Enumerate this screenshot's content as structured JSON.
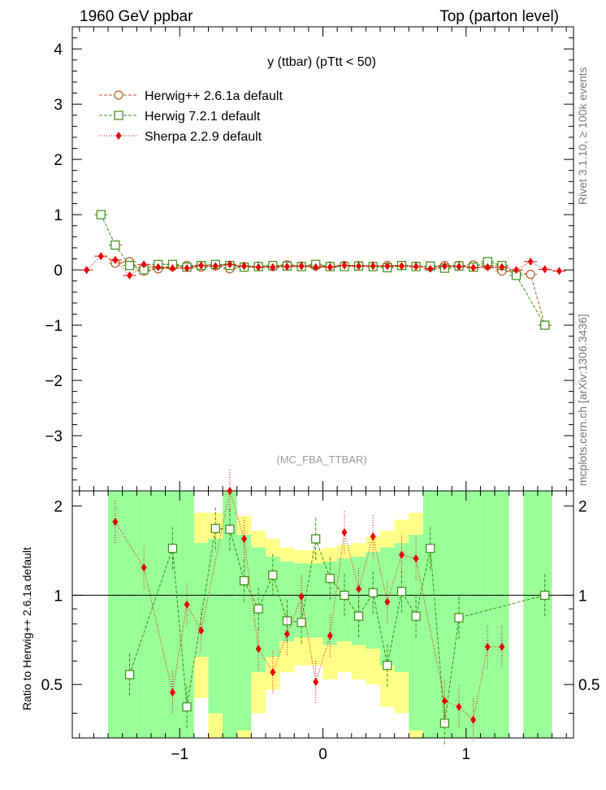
{
  "header": {
    "left": "1960 GeV ppbar",
    "right": "Top (parton level)"
  },
  "side_labels": {
    "rivet": "Rivet 3.1.10, ≥ 100k events",
    "mcplots": "mcplots.cern.ch [arXiv:1306.3436]"
  },
  "chart_data": [
    {
      "type": "line",
      "title": "y (ttbar) (pTtt < 50)",
      "watermark": "(MC_FBA_TTBAR)",
      "xlim": [
        -1.75,
        1.75
      ],
      "ylim": [
        -4.0,
        4.4
      ],
      "x_ticks": [
        -1,
        0,
        1
      ],
      "y_ticks": [
        -3,
        -2,
        -1,
        0,
        1,
        2,
        3,
        4
      ],
      "x_tick_labels": [
        "−1",
        "0",
        "1"
      ],
      "y_tick_labels": [
        "−3",
        "−2",
        "−1",
        "0",
        "1",
        "2",
        "3",
        "4"
      ],
      "legend": [
        {
          "name": "Herwig++ 2.6.1a default",
          "color": "#b45a1e",
          "marker": "circle",
          "dash": "4,2"
        },
        {
          "name": "Herwig 7.2.1 default",
          "color": "#3c8c14",
          "marker": "square",
          "dash": "4,2"
        },
        {
          "name": "Sherpa 2.2.9 default",
          "color": "#e60000",
          "marker": "diamond",
          "dash": "1,2"
        }
      ],
      "series": [
        {
          "name": "Herwig++ 2.6.1a default",
          "x": [
            -1.45,
            -1.35,
            -1.25,
            -1.15,
            -1.05,
            -0.95,
            -0.85,
            -0.75,
            -0.65,
            -0.55,
            -0.45,
            -0.35,
            -0.25,
            -0.15,
            -0.05,
            0.05,
            0.15,
            0.25,
            0.35,
            0.45,
            0.55,
            0.65,
            0.75,
            0.85,
            0.95,
            1.05,
            1.15,
            1.25,
            1.45,
            1.55
          ],
          "y": [
            0.12,
            0.15,
            -0.02,
            0.02,
            0.06,
            0.08,
            0.05,
            0.07,
            0.02,
            0.06,
            0.07,
            0.06,
            0.09,
            0.07,
            0.07,
            0.07,
            0.08,
            0.08,
            0.07,
            0.08,
            0.08,
            0.07,
            0.06,
            0.08,
            0.08,
            0.09,
            0.08,
            -0.02,
            -0.08,
            -1.0
          ]
        },
        {
          "name": "Herwig 7.2.1 default",
          "x": [
            -1.55,
            -1.45,
            -1.35,
            -1.25,
            -1.15,
            -1.05,
            -0.95,
            -0.85,
            -0.75,
            -0.65,
            -0.55,
            -0.45,
            -0.35,
            -0.25,
            -0.15,
            -0.05,
            0.05,
            0.15,
            0.25,
            0.35,
            0.45,
            0.55,
            0.65,
            0.75,
            0.85,
            0.95,
            1.05,
            1.15,
            1.25,
            1.35,
            1.55
          ],
          "y": [
            1.0,
            0.45,
            0.08,
            0.0,
            0.1,
            0.1,
            0.05,
            0.08,
            0.1,
            0.08,
            0.05,
            0.06,
            0.08,
            0.07,
            0.06,
            0.1,
            0.06,
            0.06,
            0.07,
            0.06,
            0.04,
            0.08,
            0.06,
            0.07,
            0.03,
            0.07,
            0.05,
            0.15,
            0.08,
            -0.1,
            -1.0
          ]
        },
        {
          "name": "Sherpa 2.2.9 default",
          "x": [
            -1.65,
            -1.55,
            -1.45,
            -1.35,
            -1.25,
            -1.15,
            -1.05,
            -0.95,
            -0.85,
            -0.75,
            -0.65,
            -0.55,
            -0.45,
            -0.35,
            -0.25,
            -0.15,
            -0.05,
            0.05,
            0.15,
            0.25,
            0.35,
            0.45,
            0.55,
            0.65,
            0.75,
            0.85,
            0.95,
            1.05,
            1.15,
            1.25,
            1.35,
            1.45,
            1.55,
            1.65
          ],
          "y": [
            0.0,
            0.25,
            0.18,
            -0.1,
            0.1,
            0.05,
            0.03,
            0.03,
            0.08,
            0.07,
            0.1,
            0.07,
            0.05,
            0.05,
            0.06,
            0.07,
            0.05,
            0.05,
            0.08,
            0.07,
            0.07,
            0.07,
            0.07,
            0.06,
            0.02,
            0.07,
            0.06,
            0.04,
            0.05,
            0.05,
            0.0,
            0.15,
            0.01,
            -0.02
          ]
        }
      ]
    },
    {
      "type": "line",
      "ylabel": "Ratio to Herwig++ 2.6.1a default",
      "xlim": [
        -1.75,
        1.75
      ],
      "ylim": [
        0.33,
        2.25
      ],
      "reference": 1.0,
      "x_ticks": [
        -1,
        0,
        1
      ],
      "x_tick_labels": [
        "−1",
        "0",
        "1"
      ],
      "y_ticks": [
        0.5,
        1,
        2
      ],
      "y_tick_labels": [
        "0.5",
        "1",
        "2"
      ],
      "bands": {
        "x_edges": [
          -1.5,
          -1.4,
          -1.3,
          -1.2,
          -1.1,
          -1.0,
          -0.9,
          -0.8,
          -0.7,
          -0.6,
          -0.5,
          -0.4,
          -0.3,
          -0.2,
          -0.1,
          0.0,
          0.1,
          0.2,
          0.3,
          0.4,
          0.5,
          0.6,
          0.7,
          0.8,
          0.9,
          1.0,
          1.1,
          1.2,
          1.3,
          1.4,
          1.5,
          1.6
        ],
        "green_low": [
          0.0,
          0.0,
          0.0,
          0.0,
          0.0,
          0.0,
          0.62,
          0.4,
          0.0,
          0.35,
          0.55,
          0.62,
          0.7,
          0.72,
          0.72,
          0.68,
          0.7,
          0.68,
          0.66,
          0.58,
          0.55,
          0.35,
          0.0,
          0.0,
          0.0,
          0.0,
          0.0,
          0.0,
          0.0,
          0.0,
          0.0
        ],
        "green_high": [
          2.3,
          2.3,
          2.3,
          2.3,
          2.3,
          2.3,
          1.5,
          1.55,
          2.3,
          1.6,
          1.45,
          1.35,
          1.3,
          1.28,
          1.28,
          1.3,
          1.33,
          1.35,
          1.4,
          1.45,
          1.5,
          1.6,
          2.3,
          2.3,
          2.3,
          2.3,
          2.3,
          2.3,
          0.0,
          2.3,
          2.3
        ],
        "yellow_low": [
          0.0,
          0.0,
          0.0,
          0.0,
          0.0,
          0.0,
          0.45,
          0.3,
          0.0,
          0.25,
          0.4,
          0.48,
          0.55,
          0.58,
          0.58,
          0.52,
          0.55,
          0.52,
          0.5,
          0.42,
          0.4,
          0.25,
          0.0,
          0.0,
          0.0,
          0.0,
          0.0,
          0.0,
          0.0,
          0.0,
          0.0
        ],
        "yellow_high": [
          2.3,
          2.3,
          2.3,
          2.3,
          2.3,
          2.3,
          1.9,
          1.9,
          2.3,
          1.85,
          1.65,
          1.55,
          1.45,
          1.42,
          1.42,
          1.45,
          1.48,
          1.5,
          1.58,
          1.65,
          1.8,
          1.9,
          2.3,
          2.3,
          2.3,
          2.3,
          2.3,
          2.3,
          0.0,
          2.3,
          2.3
        ],
        "green_color": "#99ff99",
        "yellow_color": "#ffff88"
      },
      "series": [
        {
          "name": "Herwig 7.2.1 default",
          "x": [
            -1.35,
            -1.05,
            -0.95,
            -0.75,
            -0.65,
            -0.55,
            -0.45,
            -0.35,
            -0.25,
            -0.15,
            -0.05,
            0.05,
            0.15,
            0.25,
            0.35,
            0.45,
            0.55,
            0.65,
            0.75,
            0.85,
            0.95,
            1.55
          ],
          "y": [
            0.54,
            1.44,
            0.42,
            1.68,
            1.67,
            1.12,
            0.9,
            1.17,
            0.82,
            0.81,
            1.55,
            1.14,
            1.0,
            0.85,
            1.02,
            0.58,
            1.03,
            0.85,
            1.44,
            0.37,
            0.84,
            1.0
          ]
        },
        {
          "name": "Sherpa 2.2.9 default",
          "x": [
            -1.45,
            -1.25,
            -1.05,
            -0.95,
            -0.85,
            -0.65,
            -0.55,
            -0.45,
            -0.35,
            -0.25,
            -0.15,
            -0.05,
            0.05,
            0.15,
            0.25,
            0.35,
            0.45,
            0.55,
            0.65,
            0.85,
            0.95,
            1.05,
            1.15,
            1.25
          ],
          "y": [
            1.77,
            1.24,
            0.47,
            0.93,
            0.76,
            2.25,
            1.55,
            0.66,
            0.55,
            0.74,
            0.99,
            0.51,
            0.73,
            1.63,
            1.05,
            1.58,
            0.95,
            1.37,
            1.33,
            0.44,
            0.42,
            0.38,
            0.67,
            0.67
          ]
        }
      ]
    }
  ]
}
